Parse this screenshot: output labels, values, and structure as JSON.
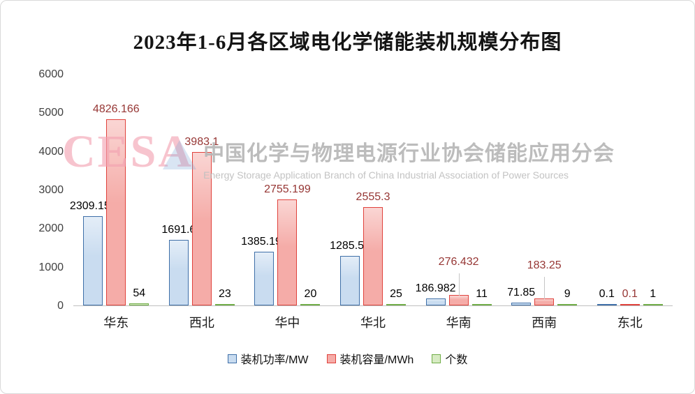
{
  "title": "2023年1-6月各区域电化学储能装机规模分布图",
  "watermark": {
    "logo": "CESA",
    "cn": "中国化学与物理电源行业协会储能应用分会",
    "en": "Energy Storage Application Branch of China Industrial Association of Power Sources"
  },
  "chart_data": {
    "type": "bar",
    "title": "2023年1-6月各区域电化学储能装机规模分布图",
    "categories": [
      "华东",
      "西北",
      "华中",
      "华北",
      "华南",
      "西南",
      "东北"
    ],
    "series": [
      {
        "name": "装机功率/MW",
        "values": [
          2309.155,
          1691.6,
          1385.199,
          1285.55,
          186.982,
          71.85,
          0.1
        ],
        "labels": [
          "2309.155",
          "1691.6",
          "1385.199",
          "1285.55",
          "186.982",
          "71.85",
          "0.1"
        ],
        "fill": "#C9DCF0",
        "border": "#3E6FA8",
        "label_color": "#000000"
      },
      {
        "name": "装机容量/MWh",
        "values": [
          4826.166,
          3983.1,
          2755.199,
          2555.3,
          276.432,
          183.25,
          0.1
        ],
        "labels": [
          "4826.166",
          "3983.1",
          "2755.199",
          "2555.3",
          "276.432",
          "183.25",
          "0.1"
        ],
        "fill": "#F5ACA8",
        "border": "#E0423C",
        "label_color": "#963634"
      },
      {
        "name": "个数",
        "values": [
          54,
          23,
          20,
          25,
          11,
          9,
          1
        ],
        "labels": [
          "54",
          "23",
          "20",
          "25",
          "11",
          "9",
          "1"
        ],
        "fill": "#D7EBC3",
        "border": "#70AD47",
        "label_color": "#000000"
      }
    ],
    "xlabel": "",
    "ylabel": "",
    "ylim": [
      0,
      6000
    ],
    "yticks": [
      "0",
      "1000",
      "2000",
      "3000",
      "4000",
      "5000",
      "6000"
    ],
    "grid": false,
    "legend_position": "bottom"
  }
}
